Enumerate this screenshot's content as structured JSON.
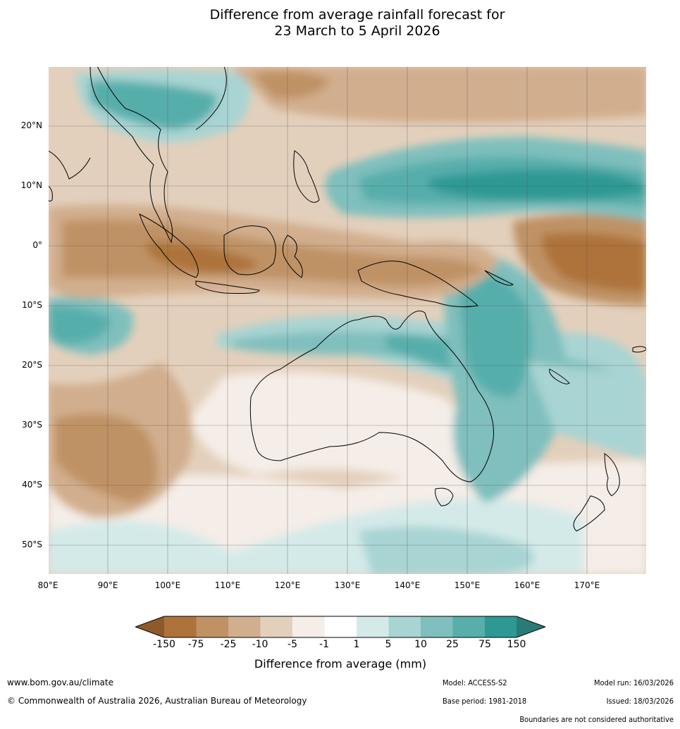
{
  "title": {
    "line1": "Difference from average rainfall forecast for",
    "line2": "23 March to 5 April 2026"
  },
  "map": {
    "lat_labels": [
      "20°N",
      "10°N",
      "0°",
      "10°S",
      "20°S",
      "30°S",
      "40°S",
      "50°S"
    ],
    "lon_labels": [
      "80°E",
      "90°E",
      "100°E",
      "110°E",
      "120°E",
      "130°E",
      "140°E",
      "150°E",
      "160°E",
      "170°E"
    ],
    "extent": {
      "lon_min": 80,
      "lon_max": 180,
      "lat_min": -55,
      "lat_max": 30
    }
  },
  "legend": {
    "title": "Difference from average (mm)",
    "ticks": [
      "-150",
      "-75",
      "-25",
      "-10",
      "-5",
      "-1",
      "1",
      "5",
      "10",
      "25",
      "75",
      "150"
    ],
    "colors": [
      "#a36a33",
      "#ad733b",
      "#bf9265",
      "#d1ae8d",
      "#e3d0bc",
      "#f5ede7",
      "#ffffff",
      "#d4eae9",
      "#a8d4d3",
      "#7fbfbd",
      "#57aeab",
      "#2e9893",
      "#2a7a76"
    ]
  },
  "footer": {
    "website": "www.bom.gov.au/climate",
    "copyright": "© Commonwealth of Australia 2026, Australian Bureau of Meteorology",
    "model": "Model: ACCESS-S2",
    "base_period": "Base period: 1981-2018",
    "model_run": "Model run: 16/03/2026",
    "issued": "Issued: 18/03/2026",
    "boundaries": "Boundaries are not considered authoritative"
  }
}
